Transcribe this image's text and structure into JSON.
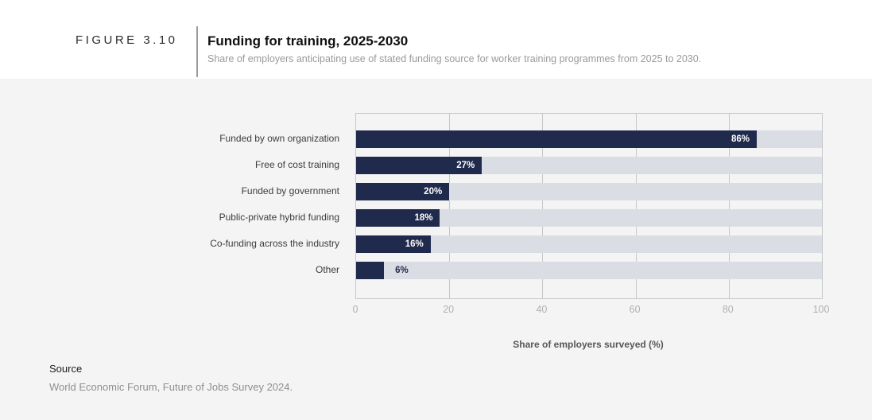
{
  "header": {
    "figure_label": "FIGURE 3.10",
    "title": "Funding for training, 2025-2030",
    "subtitle": "Share of employers anticipating use of stated funding source for worker training programmes from 2025 to 2030."
  },
  "chart_data": {
    "type": "bar",
    "orientation": "horizontal",
    "categories": [
      "Funded by own organization",
      "Free of cost training",
      "Funded by government",
      "Public-private hybrid funding",
      "Co-funding across the industry",
      "Other"
    ],
    "values": [
      86,
      27,
      20,
      18,
      16,
      6
    ],
    "value_labels": [
      "86%",
      "27%",
      "20%",
      "18%",
      "16%",
      "6%"
    ],
    "xlabel": "Share of employers surveyed (%)",
    "xlim": [
      0,
      100
    ],
    "xticks": [
      0,
      20,
      40,
      60,
      80,
      100
    ],
    "grid": true,
    "legend": "none",
    "colors": {
      "bar": "#202a4c",
      "track": "#dbdde4",
      "value_inside": "#ffffff",
      "value_outside": "#202a4c"
    }
  },
  "source": {
    "label": "Source",
    "text": "World Economic Forum, Future of Jobs Survey 2024."
  }
}
